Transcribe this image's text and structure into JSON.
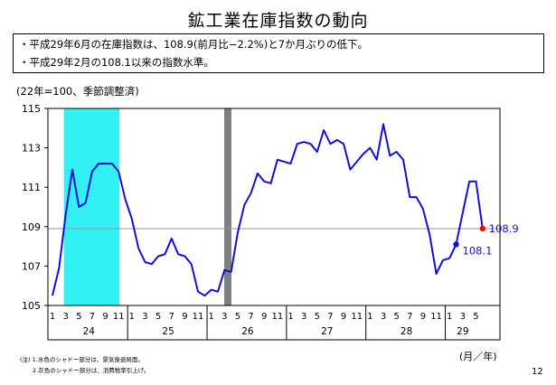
{
  "page": {
    "title": "鉱工業在庫指数の動向",
    "notes": [
      "・平成29年6月の在庫指数は、108.9(前月比−2.2%)と7か月ぶりの低下。",
      "・平成29年2月の108.1以来の指数水準。"
    ],
    "unit_label": "(22年=100、季節調整済)",
    "x_unit": "(月／年)",
    "footnotes": [
      "(注) 1.水色のシャドー部分は、景気後退局面。",
      "2.灰色のシャドー部分は、消費税率引上げ。"
    ],
    "page_number": "12"
  },
  "chart_data": {
    "type": "line",
    "title": "鉱工業在庫指数の動向",
    "ylabel": "(22年=100、季節調整済)",
    "xlabel": "(月／年)",
    "ylim": [
      105,
      115
    ],
    "yticks": [
      "105",
      "107",
      "109",
      "111",
      "113",
      "115"
    ],
    "years": [
      "24",
      "25",
      "26",
      "27",
      "28",
      "29"
    ],
    "month_ticks": [
      "1",
      "3",
      "5",
      "7",
      "9",
      "11"
    ],
    "last_year_month_ticks": [
      "1",
      "3",
      "5"
    ],
    "grid": false,
    "reference_line": 108.9,
    "shading": [
      {
        "type": "recession",
        "from": "24/3",
        "to": "24/11",
        "color": "#33f0f5"
      },
      {
        "type": "consumption-tax-hike",
        "at": "26/4",
        "color": "#808080"
      }
    ],
    "series": [
      {
        "color": "#1010dd",
        "x": [
          "24/1",
          "24/2",
          "24/3",
          "24/4",
          "24/5",
          "24/6",
          "24/7",
          "24/8",
          "24/9",
          "24/10",
          "24/11",
          "24/12",
          "25/1",
          "25/2",
          "25/3",
          "25/4",
          "25/5",
          "25/6",
          "25/7",
          "25/8",
          "25/9",
          "25/10",
          "25/11",
          "25/12",
          "26/1",
          "26/2",
          "26/3",
          "26/4",
          "26/5",
          "26/6",
          "26/7",
          "26/8",
          "26/9",
          "26/10",
          "26/11",
          "26/12",
          "27/1",
          "27/2",
          "27/3",
          "27/4",
          "27/5",
          "27/6",
          "27/7",
          "27/8",
          "27/9",
          "27/10",
          "27/11",
          "27/12",
          "28/1",
          "28/2",
          "28/3",
          "28/4",
          "28/5",
          "28/6",
          "28/7",
          "28/8",
          "28/9",
          "28/10",
          "28/11",
          "28/12",
          "29/1",
          "29/2",
          "29/3",
          "29/4",
          "29/5",
          "29/6"
        ],
        "values": [
          105.5,
          106.9,
          109.6,
          111.9,
          110.0,
          110.2,
          111.8,
          112.2,
          112.2,
          112.2,
          111.8,
          110.4,
          109.4,
          107.9,
          107.2,
          107.1,
          107.5,
          107.6,
          108.4,
          107.6,
          107.5,
          107.1,
          105.7,
          105.5,
          105.8,
          105.7,
          106.8,
          106.7,
          108.7,
          110.1,
          110.7,
          111.7,
          111.3,
          111.2,
          112.4,
          112.3,
          112.2,
          113.2,
          113.3,
          113.2,
          112.8,
          113.9,
          113.2,
          113.4,
          113.2,
          111.9,
          112.3,
          112.7,
          113.0,
          112.4,
          114.2,
          112.6,
          112.8,
          112.4,
          110.5,
          110.5,
          109.9,
          108.6,
          106.6,
          107.3,
          107.4,
          108.1,
          109.7,
          111.3,
          111.3,
          108.9
        ]
      }
    ],
    "annotations": [
      {
        "x": "29/2",
        "value": 108.1,
        "label": "108.1",
        "marker_color": "#1010dd"
      },
      {
        "x": "29/6",
        "value": 108.9,
        "label": "108.9",
        "marker_color": "#ff0000"
      }
    ]
  }
}
